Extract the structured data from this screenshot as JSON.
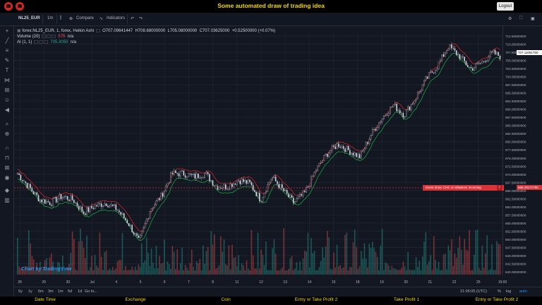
{
  "page": {
    "title": "Some automated draw of trading idea",
    "logout_label": "Logout"
  },
  "toolbar": {
    "symbol": "NL25_EUR",
    "interval": "1m",
    "compare_label": "Compare",
    "indicators_label": "Indicators"
  },
  "legend": {
    "symbol_line": "forex:NL25_EUR, 1, forex, Heikin Ashi",
    "open": "O707.09641447",
    "high": "H708.68000000",
    "low": "L705.08000000",
    "close": "C707.03625000",
    "change": "+0.52500000 (+0.07%)",
    "volume_label": "Volume (20)",
    "volume_value": "575",
    "volume_na": "n/a",
    "ai_label": "AI (1, 1)",
    "ai_value": "705.3050",
    "ai_na": "n/a"
  },
  "watermark": "Chart by TradingView",
  "alert_text": "Event draw: CHC or whatever incoming",
  "price_axis": {
    "labels": [
      "712.50000000",
      "710.00000000",
      "707.50000000",
      "705.00000000",
      "702.50000000",
      "700.00000000",
      "697.50000000",
      "695.00000000",
      "692.50000000",
      "690.00000000",
      "687.50000000",
      "685.00000000",
      "682.50000000",
      "680.00000000",
      "677.50000000",
      "675.00000000",
      "672.50000000",
      "670.00000000",
      "667.50000000",
      "665.00000000",
      "662.50000000",
      "660.00000000",
      "657.50000000",
      "655.00000000",
      "652.50000000",
      "650.00000000",
      "647.50000000",
      "645.00000000",
      "642.50000000",
      "640.00000000"
    ],
    "last_price": "707.11081750",
    "alert_price": "666.29171750"
  },
  "time_axis": {
    "labels": [
      "28",
      "29",
      "30",
      "Jul",
      "4",
      "5",
      "6",
      "7",
      "8",
      "11",
      "12",
      "13",
      "14",
      "15",
      "18",
      "19",
      "20",
      "21",
      "22",
      "25",
      "19:00"
    ]
  },
  "range_bar": {
    "buttons": [
      "5y",
      "1y",
      "6m",
      "3m",
      "1m",
      "5d",
      "1d",
      "Go to..."
    ],
    "clock": "21:06:05 (UTC)",
    "percent": "%",
    "log": "log",
    "auto": "auto"
  },
  "bottom_nav": [
    "Date Time",
    "Exchange",
    "Coin",
    "Entry or Take Profit 2",
    "Take Profit 1",
    "Entry or Take Profit 2"
  ],
  "colors": {
    "up": "#26a69a",
    "down": "#ef5350",
    "banner_text": "#f5d90a",
    "alert": "#d9343a"
  },
  "chart_data": {
    "type": "candlestick",
    "ylim": [
      640,
      714
    ],
    "close_trend": [
      [
        0,
        671
      ],
      [
        3,
        667
      ],
      [
        6,
        663
      ],
      [
        9,
        662
      ],
      [
        12,
        664
      ],
      [
        15,
        663
      ],
      [
        18,
        659
      ],
      [
        21,
        661
      ],
      [
        24,
        662
      ],
      [
        27,
        660
      ],
      [
        30,
        656
      ],
      [
        33,
        650
      ],
      [
        36,
        660
      ],
      [
        39,
        664
      ],
      [
        42,
        671
      ],
      [
        45,
        671
      ],
      [
        48,
        670
      ],
      [
        51,
        671
      ],
      [
        54,
        667
      ],
      [
        57,
        667
      ],
      [
        60,
        669
      ],
      [
        63,
        668
      ],
      [
        66,
        663
      ],
      [
        69,
        670
      ],
      [
        72,
        666
      ],
      [
        75,
        662
      ],
      [
        78,
        665
      ],
      [
        81,
        672
      ],
      [
        84,
        677
      ],
      [
        87,
        680
      ],
      [
        90,
        678
      ],
      [
        93,
        676
      ],
      [
        96,
        683
      ],
      [
        99,
        688
      ],
      [
        102,
        692
      ],
      [
        105,
        689
      ],
      [
        108,
        694
      ],
      [
        111,
        700
      ],
      [
        114,
        704
      ],
      [
        117,
        710
      ],
      [
        120,
        707
      ],
      [
        123,
        703
      ],
      [
        126,
        705
      ],
      [
        129,
        708
      ],
      [
        131,
        707
      ]
    ]
  }
}
